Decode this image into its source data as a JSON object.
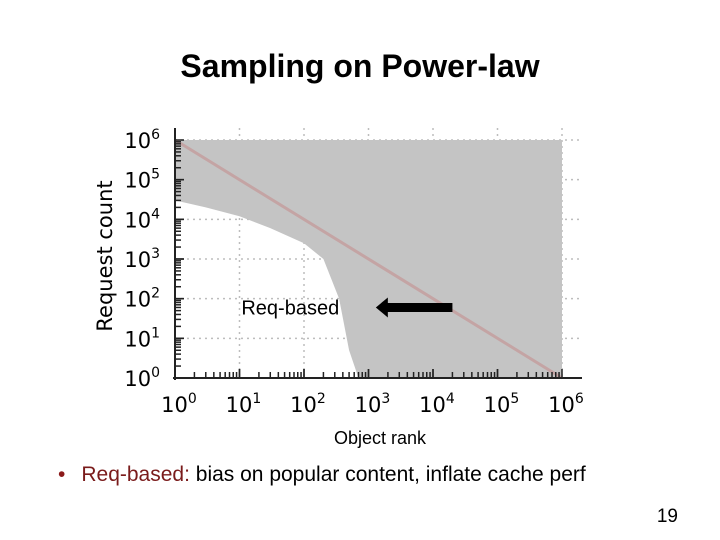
{
  "slide": {
    "title": "Sampling on Power-law",
    "bullet_highlight": "Req-based:",
    "bullet_rest": " bias on popular content, inflate cache perf",
    "page_number": "19"
  },
  "colors": {
    "band": "#c4c4c4",
    "line": "#c4a4a4",
    "arrow": "#000000",
    "grid": "#bdbdbd",
    "highlight": "#7a1b1b"
  },
  "chart_data": {
    "type": "area",
    "title": "",
    "xlabel": "Object rank",
    "ylabel": "Request count",
    "xscale": "log",
    "yscale": "log",
    "xlim": [
      1,
      1000000
    ],
    "ylim": [
      1,
      1000000
    ],
    "x_ticks": [
      {
        "value": 1,
        "base": "10",
        "exp": "0"
      },
      {
        "value": 10,
        "base": "10",
        "exp": "1"
      },
      {
        "value": 100,
        "base": "10",
        "exp": "2"
      },
      {
        "value": 1000,
        "base": "10",
        "exp": "3"
      },
      {
        "value": 10000,
        "base": "10",
        "exp": "4"
      },
      {
        "value": 100000,
        "base": "10",
        "exp": "5"
      },
      {
        "value": 1000000,
        "base": "10",
        "exp": "6"
      }
    ],
    "y_ticks": [
      {
        "value": 1,
        "base": "10",
        "exp": "0"
      },
      {
        "value": 10,
        "base": "10",
        "exp": "1"
      },
      {
        "value": 100,
        "base": "10",
        "exp": "2"
      },
      {
        "value": 1000,
        "base": "10",
        "exp": "3"
      },
      {
        "value": 10000,
        "base": "10",
        "exp": "4"
      },
      {
        "value": 100000,
        "base": "10",
        "exp": "5"
      },
      {
        "value": 1000000,
        "base": "10",
        "exp": "6"
      }
    ],
    "grid": true,
    "series": [
      {
        "kind": "line",
        "x": [
          1,
          1000000
        ],
        "y": [
          1000000,
          1
        ]
      },
      {
        "kind": "band",
        "x": [
          1,
          3,
          10,
          30,
          100,
          200,
          350,
          500,
          700,
          1000,
          1000000
        ],
        "y_upper": [
          1000000,
          1000000,
          1000000,
          1000000,
          1000000,
          1000000,
          1000000,
          1000000,
          1000000,
          1000000,
          1000000
        ],
        "y_lower": [
          30000,
          20000,
          12000,
          6000,
          2500,
          1000,
          100,
          5,
          1,
          1,
          1
        ]
      }
    ],
    "annotations": [
      {
        "text": "Req-based",
        "x": 30,
        "y": 60
      },
      {
        "kind": "arrow",
        "direction": "left",
        "x_from": 20000,
        "x_to": 1300,
        "y": 60
      }
    ]
  }
}
